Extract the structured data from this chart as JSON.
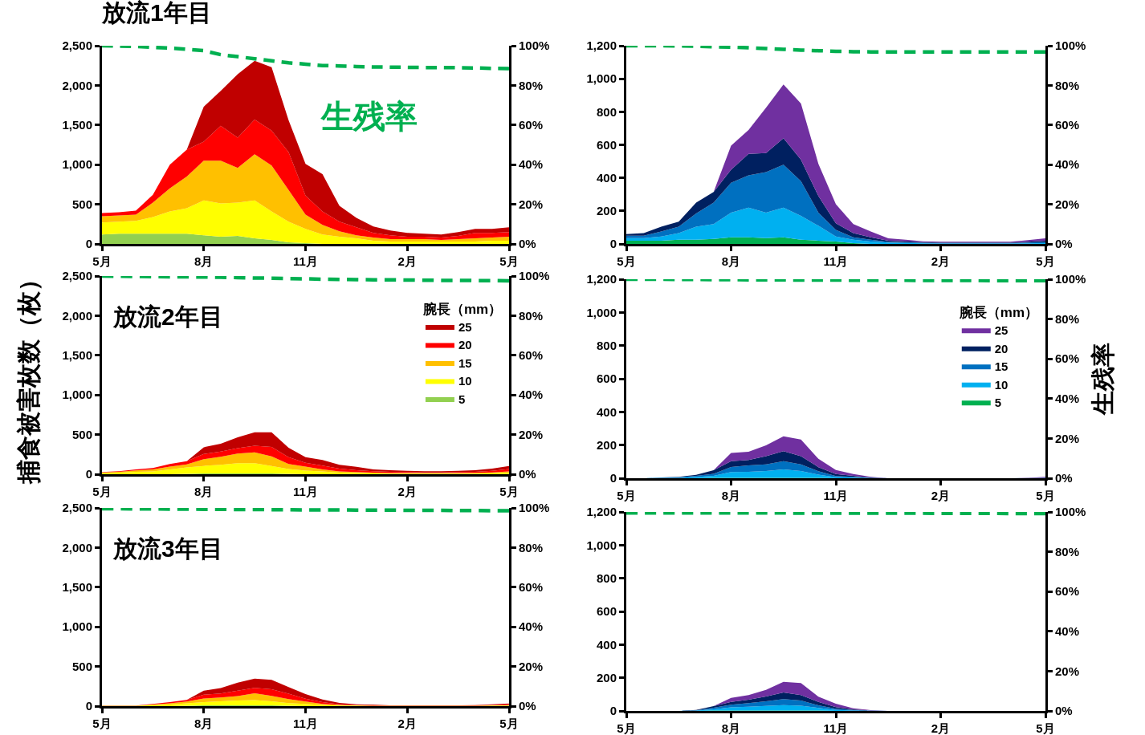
{
  "chart_data": [
    {
      "type": "area",
      "stacked": true,
      "title": "放流1年目",
      "categories": [
        "5月",
        null,
        null,
        null,
        null,
        null,
        "8月",
        null,
        null,
        null,
        null,
        null,
        "11月",
        null,
        null,
        null,
        null,
        null,
        "2月",
        null,
        null,
        null,
        null,
        null,
        "5月"
      ],
      "ylim": [
        0,
        2500
      ],
      "yticks": [
        0,
        {
          "value": 500,
          "label": "500"
        },
        {
          "value": 1000,
          "label": "1,000"
        },
        {
          "value": 1500,
          "label": "1,500"
        },
        {
          "value": 2000,
          "label": "2,000"
        },
        {
          "value": 2500,
          "label": "2,500"
        }
      ],
      "y2lim": [
        0,
        100
      ],
      "y2ticks": [
        {
          "value": 0,
          "label": "0%"
        },
        {
          "value": 20,
          "label": "20%"
        },
        {
          "value": 40,
          "label": "40%"
        },
        {
          "value": 60,
          "label": "60%"
        },
        {
          "value": 80,
          "label": "80%"
        },
        {
          "value": 100,
          "label": "100%"
        }
      ],
      "grid": false,
      "legend": false,
      "series": [
        {
          "color": "#92d050",
          "values": [
            120,
            130,
            130,
            130,
            130,
            130,
            110,
            90,
            100,
            70,
            50,
            20,
            10,
            0,
            0,
            0,
            0,
            0,
            0,
            0,
            0,
            0,
            0,
            0,
            0
          ]
        },
        {
          "color": "#ffff00",
          "values": [
            150,
            150,
            160,
            210,
            280,
            320,
            440,
            420,
            420,
            480,
            360,
            260,
            180,
            120,
            90,
            70,
            40,
            30,
            30,
            30,
            30,
            30,
            30,
            40,
            40
          ]
        },
        {
          "color": "#ffc000",
          "values": [
            80,
            80,
            80,
            180,
            290,
            400,
            500,
            540,
            440,
            580,
            580,
            400,
            180,
            120,
            70,
            40,
            40,
            30,
            30,
            30,
            20,
            30,
            40,
            40,
            50
          ]
        },
        {
          "color": "#ff0000",
          "values": [
            40,
            40,
            50,
            100,
            300,
            340,
            240,
            440,
            380,
            440,
            440,
            480,
            240,
            170,
            120,
            100,
            60,
            50,
            30,
            30,
            30,
            40,
            70,
            60,
            60
          ]
        },
        {
          "color": "#c00000",
          "values": [
            0,
            0,
            0,
            0,
            0,
            0,
            440,
            440,
            800,
            740,
            800,
            400,
            400,
            470,
            200,
            120,
            80,
            60,
            50,
            40,
            40,
            50,
            50,
            50,
            60
          ]
        },
        {
          "type": "line",
          "axis": "y2",
          "name": "生残率",
          "color": "#00b050",
          "line_style": "dashed",
          "values": [
            100,
            99.8,
            99.6,
            99.2,
            98.8,
            98.2,
            97.5,
            95.5,
            94.5,
            93.4,
            92.4,
            91.4,
            90.7,
            90,
            89.8,
            89.5,
            89.3,
            89.2,
            89.1,
            89,
            89,
            88.9,
            88.8,
            88.6,
            88.5
          ]
        }
      ]
    },
    {
      "type": "area",
      "stacked": true,
      "categories": [
        "5月",
        null,
        null,
        null,
        null,
        null,
        "8月",
        null,
        null,
        null,
        null,
        null,
        "11月",
        null,
        null,
        null,
        null,
        null,
        "2月",
        null,
        null,
        null,
        null,
        null,
        "5月"
      ],
      "ylim": [
        0,
        1200
      ],
      "yticks": [
        0,
        200,
        400,
        600,
        800,
        {
          "value": 1000,
          "label": "1,000"
        },
        {
          "value": 1200,
          "label": "1,200"
        }
      ],
      "y2lim": [
        0,
        100
      ],
      "y2ticks": [
        {
          "value": 0,
          "label": "0%"
        },
        {
          "value": 20,
          "label": "20%"
        },
        {
          "value": 40,
          "label": "40%"
        },
        {
          "value": 60,
          "label": "60%"
        },
        {
          "value": 80,
          "label": "80%"
        },
        {
          "value": 100,
          "label": "100%"
        }
      ],
      "grid": false,
      "legend": false,
      "series": [
        {
          "color": "#00b050",
          "values": [
            20,
            20,
            20,
            25,
            25,
            30,
            40,
            40,
            35,
            40,
            25,
            20,
            15,
            5,
            0,
            0,
            0,
            0,
            0,
            0,
            0,
            0,
            0,
            0,
            0
          ]
        },
        {
          "color": "#00b0f0",
          "values": [
            15,
            15,
            25,
            40,
            80,
            90,
            150,
            180,
            155,
            180,
            145,
            90,
            30,
            20,
            15,
            8,
            6,
            4,
            3,
            3,
            3,
            3,
            3,
            4,
            5
          ]
        },
        {
          "color": "#0070c0",
          "values": [
            15,
            15,
            30,
            40,
            80,
            130,
            180,
            195,
            245,
            260,
            210,
            80,
            40,
            15,
            10,
            4,
            4,
            3,
            3,
            3,
            3,
            3,
            3,
            4,
            6
          ]
        },
        {
          "color": "#002060",
          "values": [
            10,
            15,
            30,
            30,
            65,
            65,
            80,
            130,
            115,
            160,
            130,
            100,
            40,
            25,
            15,
            8,
            6,
            4,
            3,
            3,
            3,
            3,
            3,
            5,
            8
          ]
        },
        {
          "color": "#7030a0",
          "values": [
            0,
            0,
            0,
            0,
            0,
            0,
            145,
            145,
            275,
            325,
            340,
            195,
            115,
            55,
            35,
            14,
            10,
            5,
            4,
            4,
            4,
            4,
            4,
            10,
            15
          ]
        },
        {
          "type": "line",
          "axis": "y2",
          "color": "#00b050",
          "line_style": "dashed",
          "values": [
            100,
            100,
            100,
            99.9,
            99.8,
            99.5,
            99.3,
            99,
            98.6,
            98.2,
            97.8,
            97.5,
            97.2,
            97,
            96.9,
            96.9,
            96.9,
            96.9,
            96.9,
            96.9,
            96.9,
            96.9,
            96.9,
            96.9,
            96.9
          ]
        }
      ]
    },
    {
      "type": "area",
      "stacked": true,
      "title": "放流2年目",
      "ylabel": "捕食被害枚数（枚）",
      "legend_title": "腕長（mm）",
      "categories": [
        "5月",
        null,
        null,
        null,
        null,
        null,
        "8月",
        null,
        null,
        null,
        null,
        null,
        "11月",
        null,
        null,
        null,
        null,
        null,
        "2月",
        null,
        null,
        null,
        null,
        null,
        "5月"
      ],
      "ylim": [
        0,
        2500
      ],
      "yticks": [
        0,
        {
          "value": 500,
          "label": "500"
        },
        {
          "value": 1000,
          "label": "1,000"
        },
        {
          "value": 1500,
          "label": "1,500"
        },
        {
          "value": 2000,
          "label": "2,000"
        },
        {
          "value": 2500,
          "label": "2,500"
        }
      ],
      "y2lim": [
        0,
        100
      ],
      "y2ticks": [
        {
          "value": 0,
          "label": "0%"
        },
        {
          "value": 20,
          "label": "20%"
        },
        {
          "value": 40,
          "label": "40%"
        },
        {
          "value": 60,
          "label": "60%"
        },
        {
          "value": 80,
          "label": "80%"
        },
        {
          "value": 100,
          "label": "100%"
        }
      ],
      "grid": false,
      "legend": "top right",
      "series": [
        {
          "name": "5",
          "color": "#92d050",
          "values": [
            0,
            0,
            0,
            0,
            0,
            5,
            10,
            10,
            10,
            10,
            10,
            5,
            0,
            0,
            0,
            0,
            0,
            0,
            0,
            0,
            0,
            0,
            0,
            0,
            0
          ]
        },
        {
          "name": "10",
          "color": "#ffff00",
          "values": [
            15,
            20,
            30,
            35,
            60,
            80,
            95,
            110,
            130,
            130,
            95,
            60,
            45,
            35,
            20,
            12,
            10,
            8,
            7,
            7,
            7,
            7,
            8,
            10,
            15
          ]
        },
        {
          "name": "15",
          "color": "#ffc000",
          "values": [
            7,
            10,
            18,
            25,
            35,
            40,
            85,
            100,
            120,
            135,
            120,
            65,
            50,
            25,
            15,
            15,
            10,
            8,
            8,
            7,
            7,
            8,
            10,
            12,
            20
          ]
        },
        {
          "name": "20",
          "color": "#ff0000",
          "values": [
            5,
            7,
            13,
            18,
            35,
            40,
            65,
            65,
            70,
            85,
            120,
            85,
            50,
            50,
            35,
            24,
            17,
            15,
            12,
            10,
            10,
            12,
            13,
            20,
            30
          ]
        },
        {
          "name": "25",
          "color": "#c00000",
          "values": [
            0,
            0,
            0,
            0,
            0,
            0,
            85,
            100,
            135,
            170,
            185,
            120,
            70,
            70,
            50,
            43,
            24,
            20,
            17,
            13,
            13,
            17,
            20,
            29,
            40
          ]
        },
        {
          "type": "line",
          "axis": "y2",
          "color": "#00b050",
          "line_style": "dashed",
          "values": [
            100,
            99.9,
            99.8,
            99.7,
            99.6,
            99.6,
            99.5,
            99.4,
            99.2,
            99,
            98.9,
            98.7,
            98.6,
            98.4,
            98.3,
            98.2,
            98.1,
            98.1,
            98,
            97.9,
            97.8,
            97.8,
            97.7,
            97.7,
            97.6
          ]
        }
      ]
    },
    {
      "type": "area",
      "stacked": true,
      "y2label": "生残率",
      "legend_title": "腕長（mm）",
      "categories": [
        "5月",
        null,
        null,
        null,
        null,
        null,
        "8月",
        null,
        null,
        null,
        null,
        null,
        "11月",
        null,
        null,
        null,
        null,
        null,
        "2月",
        null,
        null,
        null,
        null,
        null,
        "5月"
      ],
      "ylim": [
        0,
        1200
      ],
      "yticks": [
        0,
        200,
        400,
        600,
        800,
        {
          "value": 1000,
          "label": "1,000"
        },
        {
          "value": 1200,
          "label": "1,200"
        }
      ],
      "y2lim": [
        0,
        100
      ],
      "y2ticks": [
        {
          "value": 0,
          "label": "0%"
        },
        {
          "value": 20,
          "label": "20%"
        },
        {
          "value": 40,
          "label": "40%"
        },
        {
          "value": 60,
          "label": "60%"
        },
        {
          "value": 80,
          "label": "80%"
        },
        {
          "value": 100,
          "label": "100%"
        }
      ],
      "grid": false,
      "legend": "top right",
      "series": [
        {
          "name": "5",
          "color": "#00b050",
          "values": [
            0,
            0,
            0,
            0,
            0,
            2,
            3,
            3,
            3,
            3,
            3,
            2,
            0,
            0,
            0,
            0,
            0,
            0,
            0,
            0,
            0,
            0,
            0,
            0,
            0
          ]
        },
        {
          "name": "10",
          "color": "#00b0f0",
          "values": [
            0,
            0,
            2,
            3,
            7,
            13,
            35,
            36,
            40,
            50,
            40,
            20,
            6,
            4,
            1,
            0,
            0,
            0,
            0,
            0,
            0,
            0,
            0,
            0,
            1
          ]
        },
        {
          "name": "15",
          "color": "#0070c0",
          "values": [
            0,
            0,
            2,
            3,
            7,
            12,
            30,
            38,
            40,
            50,
            40,
            20,
            7,
            5,
            2,
            0,
            0,
            0,
            0,
            0,
            0,
            0,
            0,
            0,
            1
          ]
        },
        {
          "name": "20",
          "color": "#002060",
          "values": [
            0,
            0,
            1,
            2,
            6,
            21,
            35,
            33,
            50,
            60,
            50,
            25,
            12,
            6,
            2,
            0,
            0,
            0,
            0,
            0,
            0,
            0,
            0,
            1,
            2
          ]
        },
        {
          "name": "25",
          "color": "#7030a0",
          "values": [
            0,
            0,
            0,
            0,
            0,
            0,
            50,
            50,
            65,
            90,
            100,
            50,
            24,
            10,
            3,
            0,
            0,
            0,
            0,
            0,
            0,
            0,
            0,
            1,
            4
          ]
        },
        {
          "type": "line",
          "axis": "y2",
          "color": "#00b050",
          "line_style": "dashed",
          "values": [
            100,
            100,
            100,
            99.9,
            99.9,
            99.8,
            99.8,
            99.7,
            99.7,
            99.7,
            99.6,
            99.6,
            99.6,
            99.5,
            99.5,
            99.5,
            99.5,
            99.4,
            99.4,
            99.4,
            99.4,
            99.3,
            99.3,
            99.3,
            99.3
          ]
        }
      ]
    },
    {
      "type": "area",
      "stacked": true,
      "title": "放流3年目",
      "categories": [
        "5月",
        null,
        null,
        null,
        null,
        null,
        "8月",
        null,
        null,
        null,
        null,
        null,
        "11月",
        null,
        null,
        null,
        null,
        null,
        "2月",
        null,
        null,
        null,
        null,
        null,
        "5月"
      ],
      "ylim": [
        0,
        2500
      ],
      "yticks": [
        0,
        {
          "value": 500,
          "label": "500"
        },
        {
          "value": 1000,
          "label": "1,000"
        },
        {
          "value": 1500,
          "label": "1,500"
        },
        {
          "value": 2000,
          "label": "2,000"
        },
        {
          "value": 2500,
          "label": "2,500"
        }
      ],
      "y2lim": [
        0,
        100
      ],
      "y2ticks": [
        {
          "value": 0,
          "label": "0%"
        },
        {
          "value": 20,
          "label": "20%"
        },
        {
          "value": 40,
          "label": "40%"
        },
        {
          "value": 60,
          "label": "60%"
        },
        {
          "value": 80,
          "label": "80%"
        },
        {
          "value": 100,
          "label": "100%"
        }
      ],
      "grid": false,
      "legend": false,
      "series": [
        {
          "color": "#92d050",
          "values": [
            0,
            0,
            0,
            0,
            0,
            5,
            10,
            10,
            10,
            10,
            10,
            5,
            0,
            0,
            0,
            0,
            0,
            0,
            0,
            0,
            0,
            0,
            0,
            0,
            0
          ]
        },
        {
          "color": "#ffff00",
          "values": [
            3,
            3,
            3,
            12,
            20,
            30,
            40,
            50,
            60,
            67,
            51,
            34,
            27,
            13,
            7,
            4,
            3,
            2,
            2,
            2,
            2,
            2,
            2,
            4,
            6
          ]
        },
        {
          "color": "#ffc000",
          "values": [
            2,
            2,
            2,
            8,
            15,
            22,
            45,
            50,
            57,
            85,
            67,
            50,
            30,
            14,
            7,
            5,
            3,
            2,
            2,
            2,
            2,
            2,
            3,
            5,
            7
          ]
        },
        {
          "color": "#ff0000",
          "values": [
            2,
            2,
            2,
            7,
            16,
            22,
            50,
            50,
            68,
            67,
            84,
            68,
            37,
            24,
            10,
            6,
            5,
            3,
            3,
            3,
            3,
            3,
            4,
            7,
            10
          ]
        },
        {
          "color": "#c00000",
          "values": [
            0,
            0,
            0,
            0,
            0,
            0,
            50,
            67,
            101,
            118,
            119,
            84,
            58,
            33,
            16,
            9,
            6,
            3,
            3,
            3,
            3,
            3,
            4,
            8,
            11
          ]
        },
        {
          "type": "line",
          "axis": "y2",
          "color": "#00b050",
          "line_style": "dashed",
          "values": [
            99.6,
            99.6,
            99.5,
            99.5,
            99.4,
            99.4,
            99.3,
            99.3,
            99.2,
            99.2,
            99.1,
            99.1,
            99,
            99,
            99,
            98.9,
            98.9,
            98.9,
            98.8,
            98.8,
            98.8,
            98.7,
            98.7,
            98.6,
            98.6
          ]
        }
      ]
    },
    {
      "type": "area",
      "stacked": true,
      "categories": [
        "5月",
        null,
        null,
        null,
        null,
        null,
        "8月",
        null,
        null,
        null,
        null,
        null,
        "11月",
        null,
        null,
        null,
        null,
        null,
        "2月",
        null,
        null,
        null,
        null,
        null,
        "5月"
      ],
      "ylim": [
        0,
        1200
      ],
      "yticks": [
        0,
        200,
        400,
        600,
        800,
        {
          "value": 1000,
          "label": "1,000"
        },
        {
          "value": 1200,
          "label": "1,200"
        }
      ],
      "y2lim": [
        0,
        100
      ],
      "y2ticks": [
        {
          "value": 0,
          "label": "0%"
        },
        {
          "value": 20,
          "label": "20%"
        },
        {
          "value": 40,
          "label": "40%"
        },
        {
          "value": 60,
          "label": "60%"
        },
        {
          "value": 80,
          "label": "80%"
        },
        {
          "value": 100,
          "label": "100%"
        }
      ],
      "grid": false,
      "legend": false,
      "series": [
        {
          "color": "#00b050",
          "values": [
            0,
            0,
            0,
            0,
            0,
            2,
            3,
            3,
            3,
            3,
            3,
            2,
            0,
            0,
            0,
            0,
            0,
            0,
            0,
            0,
            0,
            0,
            0,
            0,
            0
          ]
        },
        {
          "color": "#00b0f0",
          "values": [
            0,
            0,
            0,
            0,
            2,
            8,
            19,
            23,
            27,
            32,
            29,
            16,
            6,
            3,
            1,
            0,
            0,
            0,
            0,
            0,
            0,
            0,
            0,
            0,
            0
          ]
        },
        {
          "color": "#0070c0",
          "values": [
            0,
            0,
            0,
            0,
            2,
            9,
            16,
            21,
            28,
            36,
            31,
            16,
            7,
            3,
            1,
            0,
            0,
            0,
            0,
            0,
            0,
            0,
            0,
            0,
            0
          ]
        },
        {
          "color": "#002060",
          "values": [
            0,
            0,
            0,
            0,
            2,
            10,
            17,
            21,
            29,
            40,
            32,
            20,
            10,
            4,
            1,
            0,
            0,
            0,
            0,
            0,
            0,
            0,
            0,
            0,
            0
          ]
        },
        {
          "color": "#7030a0",
          "values": [
            0,
            0,
            0,
            0,
            0,
            0,
            24,
            27,
            40,
            65,
            73,
            32,
            21,
            6,
            2,
            0,
            0,
            0,
            0,
            0,
            0,
            0,
            0,
            0,
            0
          ]
        },
        {
          "type": "line",
          "axis": "y2",
          "color": "#00b050",
          "line_style": "dashed",
          "values": [
            99.5,
            99.5,
            99.5,
            99.5,
            99.5,
            99.5,
            99.5,
            99.5,
            99.5,
            99.5,
            99.4,
            99.4,
            99.4,
            99.4,
            99.4,
            99.4,
            99.4,
            99.4,
            99.3,
            99.3,
            99.3,
            99.3,
            99.2,
            99.2,
            99.2
          ]
        }
      ]
    }
  ]
}
